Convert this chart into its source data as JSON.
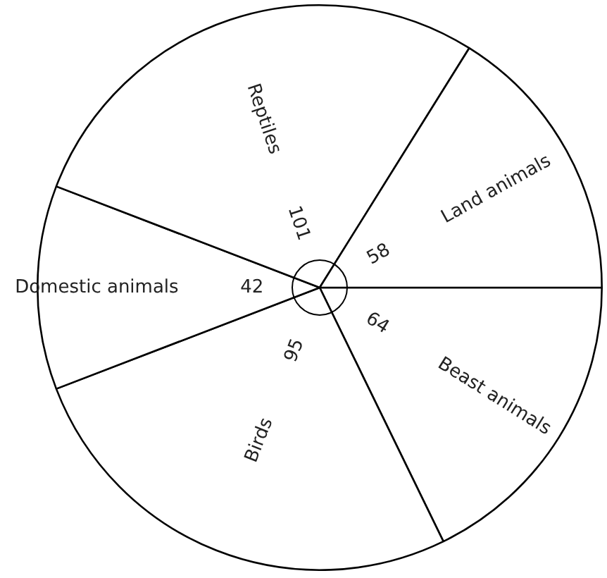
{
  "chart_data": {
    "type": "pie",
    "categories": [
      "Beast animals",
      "Birds",
      "Domestic animals",
      "Reptiles",
      "Land animals"
    ],
    "values": [
      64,
      95,
      42,
      101,
      58
    ],
    "colors": [
      "#ffffff",
      "#ffffff",
      "#ffffff",
      "#ffffff",
      "#ffffff"
    ],
    "data_labels": true
  }
}
